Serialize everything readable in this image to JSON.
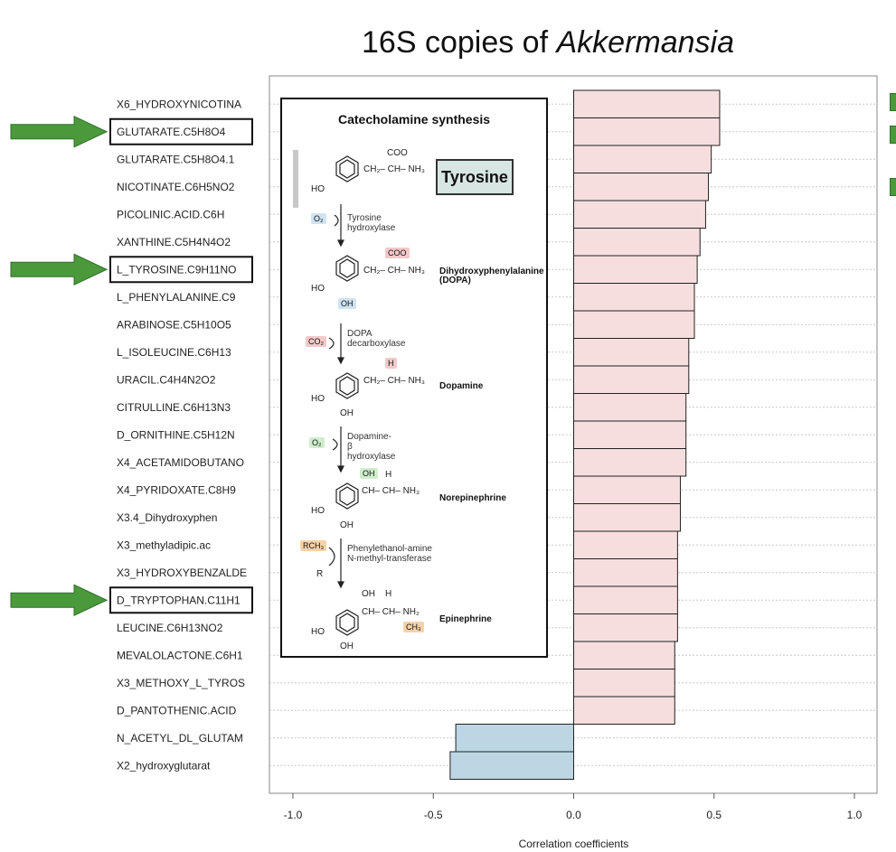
{
  "title_prefix": "16S copies of",
  "title_italic": "Akkermansia",
  "chart_data": {
    "type": "bar",
    "orientation": "horizontal",
    "xlabel": "Correlation coefficients",
    "xlim": [
      -1.0,
      1.0
    ],
    "xticks": [
      "-1.0",
      "-0.5",
      "0.0",
      "0.5",
      "1.0"
    ],
    "categories": [
      "X6_HYDROXYNICOTINA",
      "GLUTARATE.C5H8O4",
      "GLUTARATE.C5H8O4.1",
      "NICOTINATE.C6H5NO2",
      "PICOLINIC.ACID.C6H",
      "XANTHINE.C5H4N4O2",
      "L_TYROSINE.C9H11NO",
      "L_PHENYLALANINE.C9",
      "ARABINOSE.C5H10O5",
      "L_ISOLEUCINE.C6H13",
      "URACIL.C4H4N2O2",
      "CITRULLINE.C6H13N3",
      "D_ORNITHINE.C5H12N",
      "X4_ACETAMIDOBUTANO",
      "X4_PYRIDOXATE.C8H9",
      "X3.4_Dihydroxyphen",
      "X3_methyladipic.ac",
      "X3_HYDROXYBENZALDE",
      "D_TRYPTOPHAN.C11H1",
      "LEUCINE.C6H13NO2",
      "MEVALOLACTONE.C6H1",
      "X3_METHOXY_L_TYROS",
      "D_PANTOTHENIC.ACID",
      "N_ACETYL_DL_GLUTAM",
      "X2_hydroxyglutarat"
    ],
    "values": [
      0.52,
      0.52,
      0.49,
      0.48,
      0.47,
      0.45,
      0.44,
      0.43,
      0.43,
      0.41,
      0.41,
      0.4,
      0.4,
      0.4,
      0.38,
      0.38,
      0.37,
      0.37,
      0.37,
      0.37,
      0.36,
      0.36,
      0.36,
      -0.42,
      -0.44
    ],
    "positive_color": "#f7dede",
    "negative_color": "#bcd6e4",
    "highlighted_categories": [
      "GLUTARATE.C5H8O4",
      "L_TYROSINE.C9H11NO",
      "D_TRYPTOPHAN.C11H1"
    ],
    "arrow_color": "#4a9a3c"
  },
  "inset": {
    "title": "Catecholamine synthesis",
    "tyrosine_label": "Tyrosine",
    "steps": [
      {
        "enzyme": "Tyrosine\nhydroxylase",
        "cofactor": "O₂"
      },
      {
        "enzyme": "DOPA\ndecarboxylase",
        "cofactor": "CO₂"
      },
      {
        "enzyme": "Dopamine-\nβ\nhydroxylase",
        "cofactor": "O₂"
      },
      {
        "enzyme": "Phenylethanol-amine\nN-methyl-transferase",
        "cofactor": "RCH₃",
        "product": "R"
      }
    ],
    "products": [
      "Dihydroxyphenylalanine\n(DOPA)",
      "Dopamine",
      "Norepinephrine",
      "Epinephrine"
    ],
    "chem_text": {
      "coo": "COO",
      "ch2_ch_nh3": "CH₂– CH– NH₃",
      "ch_ch_nh3": "CH– CH– NH₃",
      "ch_ch_nh2": "CH– CH– NH₂",
      "ho": "HO",
      "oh": "OH",
      "h": "H",
      "ch3": "CH₃",
      "plus": "+"
    }
  }
}
